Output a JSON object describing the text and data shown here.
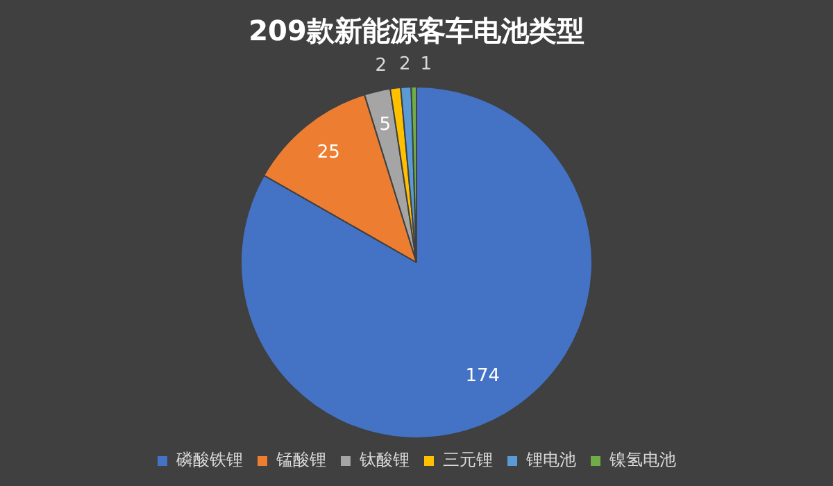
{
  "chart_data": {
    "type": "pie",
    "title": "209款新能源客车电池类型",
    "categories": [
      "磷酸铁锂",
      "锰酸锂",
      "钛酸锂",
      "三元锂",
      "锂电池",
      "镍氢电池"
    ],
    "values": [
      174,
      25,
      5,
      2,
      2,
      1
    ],
    "colors": [
      "#4472c4",
      "#ed7d31",
      "#a5a5a5",
      "#ffc000",
      "#5b9bd5",
      "#70ad47"
    ],
    "data_labels": true,
    "legend": "bottom"
  }
}
